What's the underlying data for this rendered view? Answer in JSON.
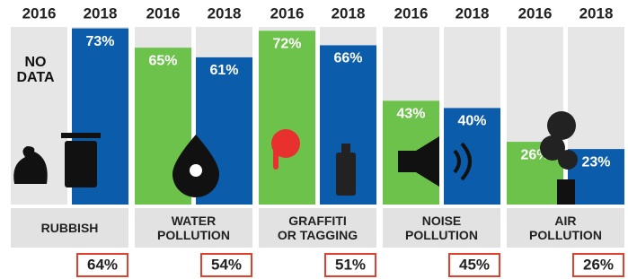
{
  "chart_data": {
    "type": "grouped_bar",
    "categories": [
      "RUBBISH",
      "WATER\nPOLLUTION",
      "GRAFFITI\nOR TAGGING",
      "NOISE\nPOLLUTION",
      "AIR\nPOLLUTION"
    ],
    "series": [
      {
        "name": "2016",
        "color": "#6cc24a",
        "values": [
          null,
          65,
          72,
          43,
          26
        ],
        "value_labels": [
          null,
          "65%",
          "72%",
          "43%",
          "26%"
        ]
      },
      {
        "name": "2018",
        "color": "#0b5cab",
        "values": [
          73,
          61,
          66,
          40,
          23
        ],
        "value_labels": [
          "73%",
          "61%",
          "66%",
          "40%",
          "23%"
        ]
      }
    ],
    "no_data_label": [
      "NO",
      "DATA"
    ],
    "overall": {
      "color": "#e0412f",
      "values": [
        64,
        54,
        51,
        45,
        26
      ],
      "value_labels": [
        "64%",
        "54%",
        "51%",
        "45%",
        "26%"
      ]
    },
    "ylim": [
      0,
      100
    ]
  }
}
